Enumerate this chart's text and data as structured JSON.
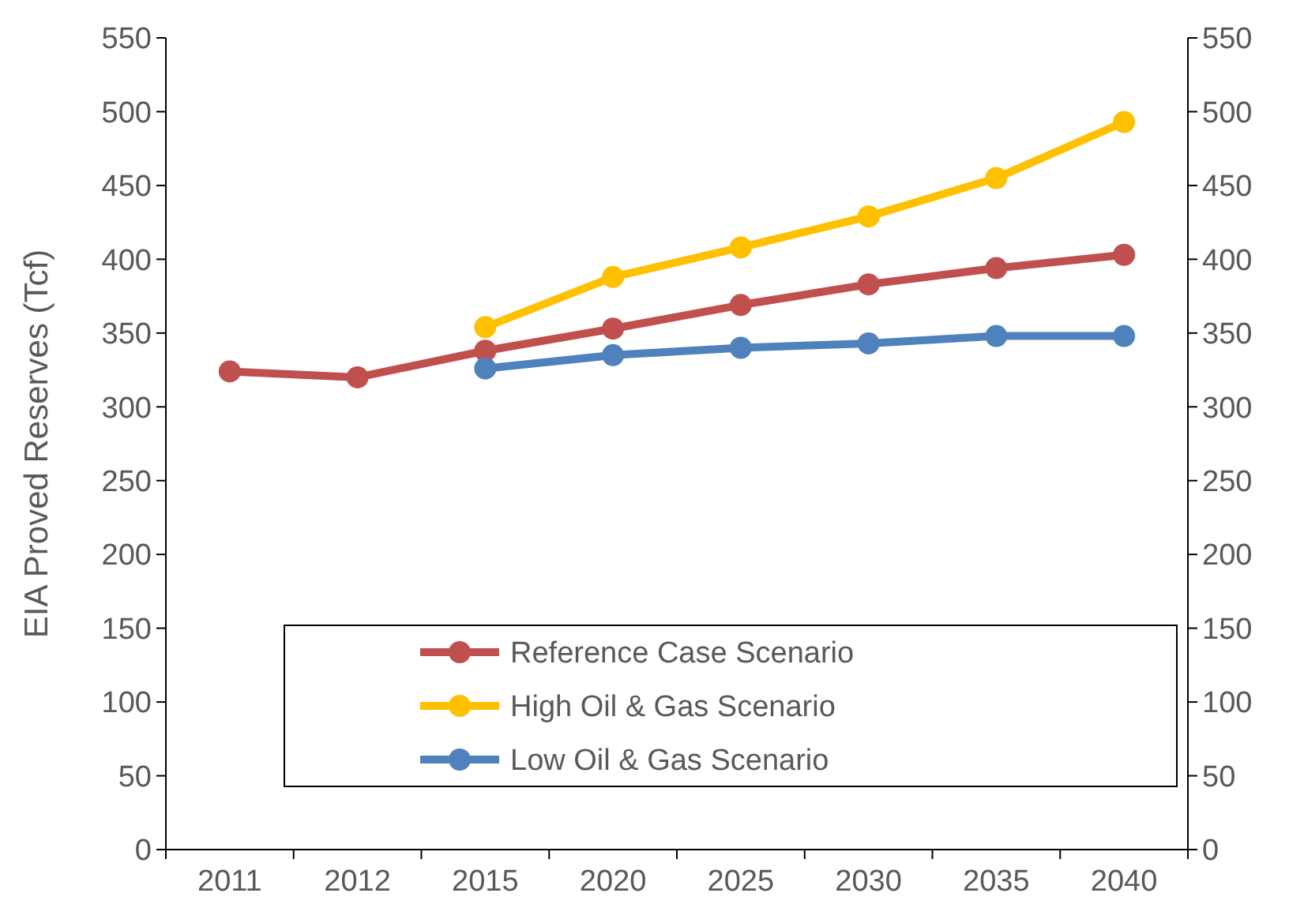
{
  "chart_data": {
    "type": "line",
    "ylabel": "EIA Proved Reserves (Tcf)",
    "categories": [
      "2011",
      "2012",
      "2015",
      "2020",
      "2025",
      "2030",
      "2035",
      "2040"
    ],
    "series": [
      {
        "name": "Reference Case Scenario",
        "color": "#c0504d",
        "values": [
          324,
          320,
          338,
          353,
          369,
          383,
          394,
          403
        ]
      },
      {
        "name": "High Oil & Gas Scenario",
        "color": "#ffc000",
        "values": [
          null,
          null,
          354,
          388,
          408,
          429,
          455,
          493
        ]
      },
      {
        "name": "Low Oil & Gas Scenario",
        "color": "#4f81bd",
        "values": [
          null,
          null,
          326,
          335,
          340,
          343,
          348,
          348
        ]
      }
    ],
    "ylim": [
      0,
      550
    ],
    "yticks": [
      0,
      50,
      100,
      150,
      200,
      250,
      300,
      350,
      400,
      450,
      500,
      550
    ],
    "y2lim": [
      0,
      550
    ],
    "y2ticks": [
      0,
      50,
      100,
      150,
      200,
      250,
      300,
      350,
      400,
      450,
      500,
      550
    ],
    "grid": false,
    "legend": "bottom",
    "marker": "circle",
    "line_style": "solid"
  }
}
